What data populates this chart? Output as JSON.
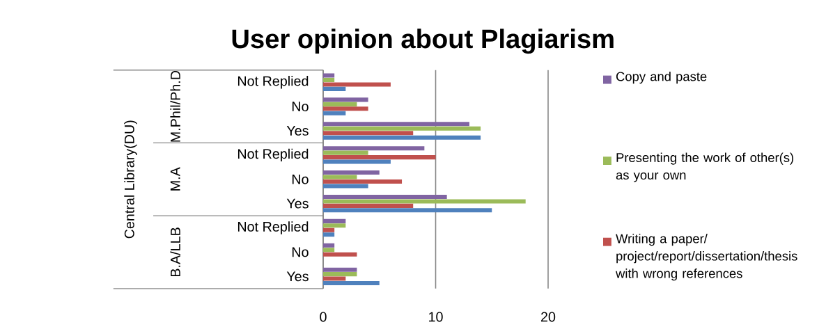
{
  "chart_data": {
    "type": "bar",
    "orientation": "horizontal",
    "title": "User opinion about Plagiarism",
    "categories": [
      "Not Replied",
      "No",
      "Yes",
      "Not Replied",
      "No",
      "Yes",
      "Not Replied",
      "No",
      "Yes"
    ],
    "annotations": [
      "Central Library(DU)",
      "M.Phil/Ph.D",
      "M.A",
      "B.A/LLB"
    ],
    "series": [
      {
        "name": "Copy and paste",
        "color": "#8064a2",
        "values": [
          1,
          4,
          13,
          9,
          5,
          11,
          2,
          1,
          3
        ]
      },
      {
        "name": "Presenting the work of other(s) as your own",
        "color": "#9bbb59",
        "values": [
          1,
          3,
          14,
          4,
          3,
          18,
          2,
          1,
          3
        ]
      },
      {
        "name": "Writing a paper/ project/report/dissertation/thesis with wrong references",
        "color": "#c0504d",
        "values": [
          6,
          4,
          8,
          10,
          7,
          8,
          1,
          3,
          2
        ]
      },
      {
        "color": "#4f81bd",
        "values": [
          2,
          2,
          14,
          6,
          4,
          15,
          1,
          0,
          5
        ]
      }
    ],
    "xlim": [
      0,
      20
    ],
    "xticks": [
      0,
      10,
      20
    ],
    "grid": "x",
    "legend": "right"
  }
}
